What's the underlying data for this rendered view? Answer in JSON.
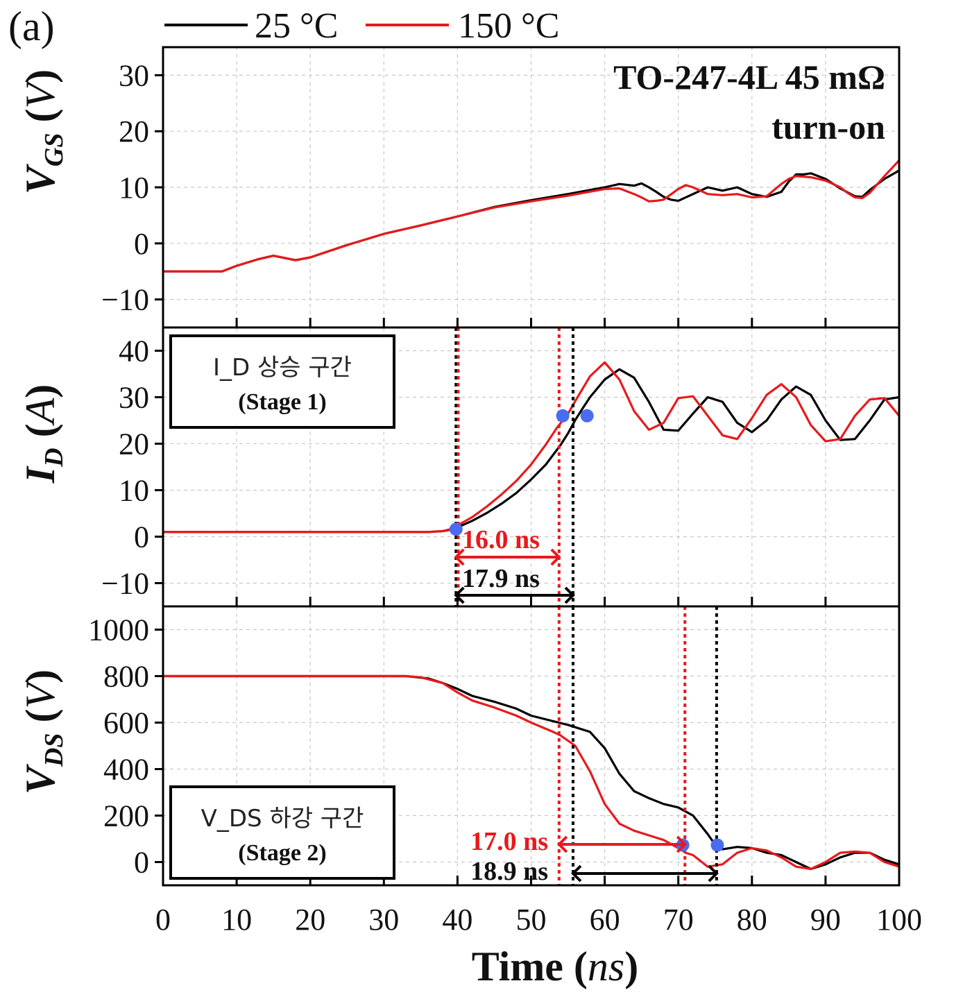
{
  "panel_label": "(a)",
  "legend": {
    "items": [
      {
        "label": "25 °C",
        "color": "#000000"
      },
      {
        "label": "150 °C",
        "color": "#e8191c"
      }
    ]
  },
  "annotation": {
    "device": "TO-247-4L 45 mΩ",
    "mode": "turn-on"
  },
  "stage_boxes": {
    "stage1": {
      "korean_label": "I_D 상승 구간",
      "stage": "(Stage 1)"
    },
    "stage2": {
      "korean_label": "V_DS 하강 구간",
      "stage": "(Stage 2)"
    }
  },
  "interval_labels": {
    "id_150": "16.0 ns",
    "id_25": "17.9 ns",
    "vds_150": "17.0 ns",
    "vds_25": "18.9 ns"
  },
  "colors": {
    "series_25": "#000000",
    "series_150": "#e8191c",
    "marker": "#4a6cf0",
    "grid": "#c8c8c8"
  },
  "chart_data": [
    {
      "type": "line",
      "panel": "VGS",
      "ylabel": "VGS (V)",
      "xlim": [
        0,
        100
      ],
      "ylim": [
        -15,
        35
      ],
      "yticks": [
        -10,
        0,
        10,
        20,
        30
      ],
      "grid": true,
      "series": [
        {
          "name": "25 °C",
          "color": "#000000",
          "x": [
            -1,
            0,
            5,
            8,
            10,
            13,
            15,
            18,
            20,
            25,
            30,
            35,
            40,
            45,
            50,
            55,
            60,
            62,
            64,
            65,
            66,
            67,
            68,
            69,
            70,
            72,
            74,
            76,
            78,
            80,
            82,
            84,
            85,
            86,
            87,
            88,
            90,
            92,
            94,
            95,
            96,
            98,
            100
          ],
          "y": [
            -4.7,
            -5,
            -5,
            -5,
            -4,
            -2.8,
            -2.2,
            -3,
            -2.5,
            -0.3,
            1.7,
            3.2,
            4.8,
            6.5,
            7.7,
            8.8,
            10,
            10.6,
            10.3,
            10.7,
            10,
            9.2,
            8.3,
            7.8,
            7.6,
            8.8,
            10,
            9.4,
            10,
            8.8,
            8.3,
            9.2,
            11,
            12.3,
            12.3,
            12.5,
            11.5,
            9.8,
            8.4,
            8.3,
            9.5,
            11.5,
            13
          ]
        },
        {
          "name": "150 °C",
          "color": "#e8191c",
          "x": [
            -1,
            0,
            5,
            8,
            10,
            13,
            15,
            18,
            20,
            25,
            30,
            35,
            40,
            45,
            50,
            55,
            60,
            62,
            64,
            65,
            66,
            67,
            68,
            70,
            71,
            72,
            74,
            76,
            78,
            80,
            82,
            84,
            85,
            86,
            88,
            90,
            92,
            93,
            94,
            95,
            96,
            98,
            100
          ],
          "y": [
            -4.7,
            -5,
            -5,
            -5,
            -4,
            -2.8,
            -2.2,
            -3,
            -2.5,
            -0.3,
            1.7,
            3.2,
            4.8,
            6.4,
            7.5,
            8.5,
            9.7,
            9.8,
            8.8,
            8.2,
            7.5,
            7.6,
            7.8,
            9.7,
            10.4,
            10,
            8.8,
            8.6,
            8.8,
            8.2,
            8.4,
            10.6,
            11.5,
            12,
            11.8,
            11.2,
            10,
            9,
            8.2,
            8.1,
            9,
            12,
            14.8
          ]
        }
      ]
    },
    {
      "type": "line",
      "panel": "ID",
      "ylabel": "ID (A)",
      "xlim": [
        0,
        100
      ],
      "ylim": [
        -15,
        45
      ],
      "yticks": [
        -10,
        0,
        10,
        20,
        30,
        40
      ],
      "grid": true,
      "series": [
        {
          "name": "25 °C",
          "color": "#000000",
          "x": [
            -1,
            10,
            20,
            30,
            36,
            38,
            39,
            40,
            42,
            44,
            46,
            48,
            50,
            52,
            54,
            55,
            56,
            57,
            58,
            60,
            62,
            64,
            66,
            68,
            70,
            72,
            74,
            76,
            78,
            80,
            82,
            84,
            86,
            88,
            90,
            92,
            94,
            96,
            98,
            100
          ],
          "y": [
            1,
            1,
            1,
            1,
            1,
            1.2,
            1.5,
            2,
            3.4,
            5.1,
            7.1,
            9.4,
            12.3,
            15.5,
            19.7,
            22.2,
            25.1,
            27.6,
            30,
            33.8,
            36,
            34.2,
            29,
            23,
            22.8,
            26.5,
            30,
            29,
            24.5,
            22.5,
            25,
            29.5,
            32.3,
            30.5,
            25,
            20.8,
            21,
            25,
            29.5,
            30
          ]
        },
        {
          "name": "150 °C",
          "color": "#e8191c",
          "x": [
            -1,
            10,
            20,
            30,
            36,
            38,
            39,
            40,
            42,
            44,
            46,
            48,
            50,
            52,
            53.5,
            55,
            56,
            58,
            60,
            62,
            64,
            66,
            68,
            70,
            72,
            74,
            76,
            78,
            80,
            82,
            84,
            86,
            88,
            90,
            92,
            94,
            96,
            98,
            100
          ],
          "y": [
            1,
            1,
            1,
            1,
            1,
            1.2,
            1.6,
            2.4,
            4.2,
            6.5,
            9.1,
            12,
            15.5,
            19.8,
            23.4,
            26.4,
            29.2,
            34.5,
            37.5,
            33.8,
            27,
            23,
            24.5,
            29.8,
            30.2,
            26,
            21.8,
            21,
            25.5,
            30.5,
            32.8,
            30,
            24,
            20.5,
            21,
            26,
            29.5,
            29.8,
            26
          ]
        }
      ],
      "markers": [
        {
          "x": 39.8,
          "y": 1.6
        },
        {
          "x": 54.3,
          "y": 26
        },
        {
          "x": 57.6,
          "y": 26
        }
      ],
      "vlines": [
        {
          "x": 39.8,
          "color": "#000000"
        },
        {
          "x": 40.1,
          "color": "#e8191c"
        },
        {
          "x": 53.8,
          "color": "#e8191c"
        },
        {
          "x": 55.7,
          "color": "#000000"
        }
      ]
    },
    {
      "type": "line",
      "panel": "VDS",
      "ylabel": "VDS (V)",
      "xlim": [
        0,
        100
      ],
      "ylim": [
        -100,
        1100
      ],
      "yticks": [
        0,
        200,
        400,
        600,
        800,
        1000
      ],
      "grid": true,
      "series": [
        {
          "name": "25 °C",
          "color": "#000000",
          "x": [
            -1,
            10,
            20,
            30,
            33,
            36,
            38,
            40,
            42,
            45,
            48,
            50,
            55,
            56,
            58,
            60,
            62,
            64,
            66,
            68,
            70,
            72,
            74,
            75,
            76,
            78,
            80,
            82,
            84,
            86,
            88,
            90,
            92,
            94,
            96,
            98,
            100
          ],
          "y": [
            800,
            800,
            800,
            800,
            800,
            790,
            770,
            745,
            715,
            690,
            660,
            630,
            590,
            580,
            560,
            490,
            380,
            305,
            275,
            250,
            235,
            200,
            120,
            75,
            55,
            65,
            60,
            40,
            30,
            0,
            -30,
            -10,
            20,
            40,
            40,
            10,
            -10
          ]
        },
        {
          "name": "150 °C",
          "color": "#e8191c",
          "x": [
            -1,
            10,
            20,
            30,
            33,
            35,
            38,
            40,
            42,
            45,
            48,
            50,
            53,
            54,
            56,
            58,
            60,
            62,
            64,
            66,
            68,
            70,
            71,
            72,
            74,
            76,
            78,
            80,
            82,
            84,
            86,
            88,
            90,
            92,
            94,
            96,
            98,
            100
          ],
          "y": [
            800,
            800,
            800,
            800,
            800,
            795,
            770,
            730,
            695,
            665,
            630,
            600,
            560,
            545,
            500,
            390,
            250,
            165,
            135,
            115,
            95,
            60,
            40,
            30,
            -20,
            -10,
            40,
            60,
            50,
            20,
            -20,
            -30,
            0,
            40,
            45,
            40,
            0,
            -20
          ]
        }
      ],
      "markers": [
        {
          "x": 70.6,
          "y": 73
        },
        {
          "x": 75.3,
          "y": 73
        }
      ],
      "vlines": [
        {
          "x": 53.8,
          "color": "#e8191c"
        },
        {
          "x": 55.7,
          "color": "#000000"
        },
        {
          "x": 70.9,
          "color": "#e8191c"
        },
        {
          "x": 75.2,
          "color": "#000000"
        }
      ]
    }
  ],
  "xaxis": {
    "label": "Time (ns)",
    "ticks": [
      0,
      10,
      20,
      30,
      40,
      50,
      60,
      70,
      80,
      90,
      100
    ]
  }
}
